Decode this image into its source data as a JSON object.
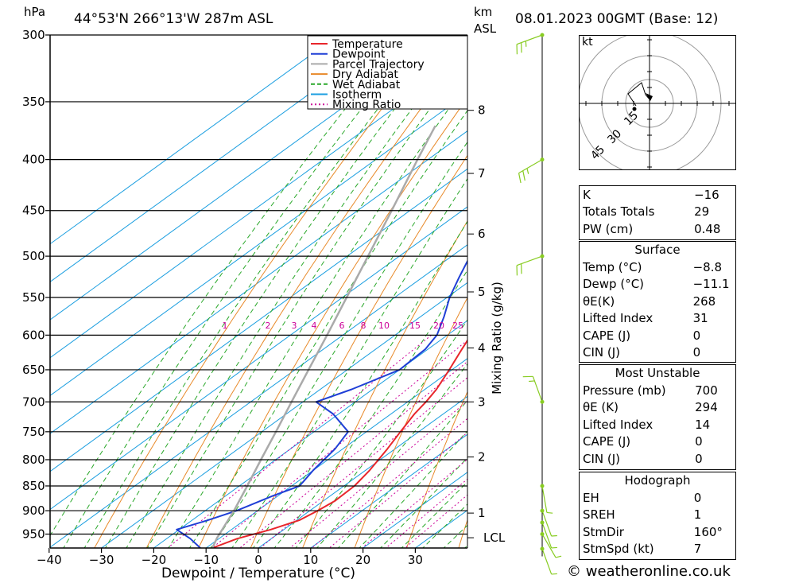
{
  "header": {
    "hpa_label": "hPa",
    "location": "44°53'N  266°13'W  287m  ASL",
    "km_label": "km",
    "asl_label": "ASL",
    "datetime": "08.01.2023  00GMT  (Base: 12)"
  },
  "legend": [
    "Temperature",
    "Dewpoint",
    "Parcel Trajectory",
    "Dry Adiabat",
    "Wet Adiabat",
    "Isotherm",
    "Mixing Ratio"
  ],
  "colors": {
    "temperature": "#e8262b",
    "dewpoint": "#1f3fd6",
    "parcel": "#aaaaaa",
    "dry_adiabat": "#e88a2a",
    "wet_adiabat": "#2aa82a",
    "isotherm": "#1a9ee0",
    "mixing_ratio": "#cc0099",
    "wind": "#88cc22"
  },
  "chart_data": {
    "type": "line",
    "title": "Skew-T log-P",
    "xlabel": "Dewpoint / Temperature (°C)",
    "ylabel_right": "Mixing Ratio (g/kg)",
    "x_ticks": [
      -40,
      -30,
      -20,
      -10,
      0,
      10,
      20,
      30
    ],
    "x_tick_labels": [
      "−40",
      "−30",
      "−20",
      "−10",
      "0",
      "10",
      "20",
      "30"
    ],
    "pressure_levels": [
      300,
      350,
      400,
      450,
      500,
      550,
      600,
      650,
      700,
      750,
      800,
      850,
      900,
      950
    ],
    "pressure_labels": [
      "300",
      "350",
      "400",
      "450",
      "500",
      "550",
      "600",
      "650",
      "700",
      "750",
      "800",
      "850",
      "900",
      "950"
    ],
    "km_ticks": [
      {
        "km": 1,
        "p": 905
      },
      {
        "km": 2,
        "p": 795
      },
      {
        "km": 3,
        "p": 700
      },
      {
        "km": 4,
        "p": 618
      },
      {
        "km": 5,
        "p": 543
      },
      {
        "km": 6,
        "p": 475
      },
      {
        "km": 7,
        "p": 413
      },
      {
        "km": 8,
        "p": 357
      }
    ],
    "lcl": {
      "label": "LCL",
      "p": 958
    },
    "mixing_ratio_labels": [
      "1",
      "2",
      "3",
      "4",
      "6",
      "8",
      "10",
      "15",
      "20",
      "25"
    ],
    "mixing_ratio_values": [
      1,
      2,
      3,
      4,
      6,
      8,
      10,
      15,
      20,
      25
    ],
    "series": [
      {
        "name": "Temperature",
        "points": [
          [
            981,
            -8.8
          ],
          [
            960,
            -6.5
          ],
          [
            940,
            -2.5
          ],
          [
            920,
            0.5
          ],
          [
            900,
            1.5
          ],
          [
            880,
            2.2
          ],
          [
            850,
            2.0
          ],
          [
            820,
            0.8
          ],
          [
            780,
            -1.5
          ],
          [
            750,
            -3.5
          ],
          [
            720,
            -5.5
          ],
          [
            700,
            -6.5
          ],
          [
            680,
            -7.8
          ],
          [
            650,
            -10.5
          ],
          [
            620,
            -13.5
          ],
          [
            600,
            -15.5
          ],
          [
            575,
            -18.0
          ],
          [
            550,
            -20.5
          ],
          [
            525,
            -23.5
          ],
          [
            500,
            -25.5
          ],
          [
            475,
            -28.5
          ],
          [
            450,
            -31.5
          ],
          [
            425,
            -35.5
          ],
          [
            400,
            -40.0
          ],
          [
            375,
            -44.5
          ],
          [
            350,
            -49.0
          ],
          [
            325,
            -53.5
          ],
          [
            300,
            -58.0
          ]
        ]
      },
      {
        "name": "Dewpoint",
        "points": [
          [
            981,
            -11.1
          ],
          [
            960,
            -15.5
          ],
          [
            940,
            -20.5
          ],
          [
            920,
            -17.0
          ],
          [
            900,
            -14.0
          ],
          [
            870,
            -11.0
          ],
          [
            850,
            -8.5
          ],
          [
            820,
            -10.0
          ],
          [
            780,
            -11.5
          ],
          [
            750,
            -13.5
          ],
          [
            720,
            -21.0
          ],
          [
            700,
            -27.5
          ],
          [
            680,
            -24.0
          ],
          [
            650,
            -20.0
          ],
          [
            620,
            -20.5
          ],
          [
            600,
            -22.0
          ],
          [
            575,
            -25.5
          ],
          [
            550,
            -29.5
          ],
          [
            525,
            -33.0
          ],
          [
            500,
            -36.5
          ],
          [
            475,
            -40.0
          ],
          [
            450,
            -43.5
          ],
          [
            425,
            -47.0
          ],
          [
            400,
            -51.0
          ],
          [
            375,
            -55.5
          ],
          [
            350,
            -60.0
          ],
          [
            325,
            -64.5
          ],
          [
            300,
            -69.0
          ]
        ]
      },
      {
        "name": "Parcel Trajectory",
        "points": [
          [
            981,
            -8.8
          ],
          [
            958,
            -10.6
          ],
          [
            900,
            -14.5
          ],
          [
            850,
            -18.5
          ],
          [
            800,
            -22.8
          ],
          [
            750,
            -27.3
          ],
          [
            700,
            -32.2
          ],
          [
            650,
            -37.4
          ],
          [
            600,
            -43.0
          ],
          [
            550,
            -49.2
          ],
          [
            500,
            -56.0
          ],
          [
            450,
            -63.5
          ],
          [
            400,
            -72.0
          ],
          [
            370,
            -77.5
          ]
        ]
      }
    ],
    "winds": [
      {
        "p": 300,
        "dir": 250,
        "kt": 25
      },
      {
        "p": 400,
        "dir": 240,
        "kt": 25
      },
      {
        "p": 500,
        "dir": 250,
        "kt": 20
      },
      {
        "p": 700,
        "dir": 340,
        "kt": 15
      },
      {
        "p": 850,
        "dir": 170,
        "kt": 5
      },
      {
        "p": 900,
        "dir": 160,
        "kt": 5
      },
      {
        "p": 925,
        "dir": 160,
        "kt": 5
      },
      {
        "p": 950,
        "dir": 150,
        "kt": 5
      },
      {
        "p": 1000,
        "dir": 160,
        "kt": 5
      }
    ]
  },
  "hodograph": {
    "unit": "kt",
    "ring_labels": [
      "15",
      "30",
      "45"
    ]
  },
  "indices": {
    "top": [
      [
        "K",
        "−16"
      ],
      [
        "Totals Totals",
        "29"
      ],
      [
        "PW (cm)",
        "0.48"
      ]
    ],
    "surface_title": "Surface",
    "surface": [
      [
        "Temp (°C)",
        "−8.8"
      ],
      [
        "Dewp (°C)",
        "−11.1"
      ],
      [
        "θE(K)",
        "268"
      ],
      [
        "Lifted Index",
        "31"
      ],
      [
        "CAPE (J)",
        "0"
      ],
      [
        "CIN (J)",
        "0"
      ]
    ],
    "mu_title": "Most Unstable",
    "mu": [
      [
        "Pressure (mb)",
        "700"
      ],
      [
        "θE (K)",
        "294"
      ],
      [
        "Lifted Index",
        "14"
      ],
      [
        "CAPE (J)",
        "0"
      ],
      [
        "CIN (J)",
        "0"
      ]
    ],
    "hodo_title": "Hodograph",
    "hodo": [
      [
        "EH",
        "0"
      ],
      [
        "SREH",
        "1"
      ],
      [
        "StmDir",
        "160°"
      ],
      [
        "StmSpd (kt)",
        "7"
      ]
    ]
  },
  "footer": "© weatheronline.co.uk"
}
